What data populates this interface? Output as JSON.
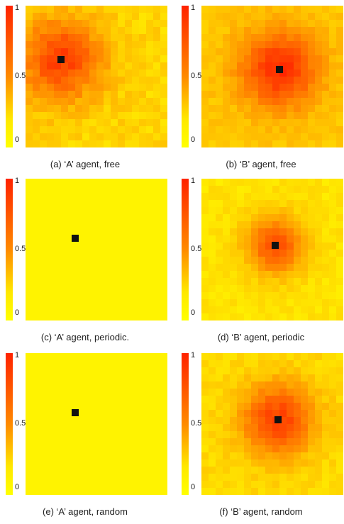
{
  "chart_data": [
    {
      "type": "heatmap",
      "caption": "(a) ‘A’ agent, free",
      "colorbar_ticks": [
        "1",
        "0.5",
        "0"
      ],
      "colorbar_range": [
        0,
        1
      ],
      "colormap": [
        "#ffff00",
        "#ff8a00",
        "#ff2200"
      ],
      "marker_color": "#111111",
      "seed": 11,
      "base": 0.18,
      "center": [
        0.25,
        0.38
      ],
      "spread": 0.34,
      "peak": 0.68,
      "noise": 0.08
    },
    {
      "type": "heatmap",
      "caption": "(b) ‘B’ agent, free",
      "colorbar_ticks": [
        "1",
        "0.5",
        "0"
      ],
      "colorbar_range": [
        0,
        1
      ],
      "colormap": [
        "#ffff00",
        "#ff8a00",
        "#ff2200"
      ],
      "marker_color": "#111111",
      "seed": 23,
      "base": 0.24,
      "center": [
        0.55,
        0.45
      ],
      "spread": 0.32,
      "peak": 0.72,
      "noise": 0.06
    },
    {
      "type": "heatmap",
      "caption": "(c) ‘A’ agent, periodic.",
      "colorbar_ticks": [
        "1",
        "0.5",
        "0"
      ],
      "colorbar_range": [
        0,
        1
      ],
      "colormap": [
        "#ffff00",
        "#ff8a00",
        "#ff2200"
      ],
      "marker_color": "#111111",
      "seed": 31,
      "base": 0.05,
      "center": [
        0.35,
        0.42
      ],
      "spread": 0.0,
      "peak": 0.0,
      "noise": 0.0
    },
    {
      "type": "heatmap",
      "caption": "(d) ‘B’ agent, periodic",
      "colorbar_ticks": [
        "1",
        "0.5",
        "0"
      ],
      "colorbar_range": [
        0,
        1
      ],
      "colormap": [
        "#ffff00",
        "#ff8a00",
        "#ff2200"
      ],
      "marker_color": "#111111",
      "seed": 47,
      "base": 0.12,
      "center": [
        0.52,
        0.47
      ],
      "spread": 0.24,
      "peak": 0.66,
      "noise": 0.05
    },
    {
      "type": "heatmap",
      "caption": "(e) ‘A’ agent, random",
      "colorbar_ticks": [
        "1",
        "0.5",
        "0"
      ],
      "colorbar_range": [
        0,
        1
      ],
      "colormap": [
        "#ffff00",
        "#ff8a00",
        "#ff2200"
      ],
      "marker_color": "#111111",
      "seed": 59,
      "base": 0.05,
      "center": [
        0.35,
        0.42
      ],
      "spread": 0.0,
      "peak": 0.0,
      "noise": 0.0
    },
    {
      "type": "heatmap",
      "caption": "(f) ‘B’ agent, random",
      "colorbar_ticks": [
        "1",
        "0.5",
        "0"
      ],
      "colorbar_range": [
        0,
        1
      ],
      "colormap": [
        "#ffff00",
        "#ff8a00",
        "#ff2200"
      ],
      "marker_color": "#111111",
      "seed": 67,
      "base": 0.16,
      "center": [
        0.54,
        0.47
      ],
      "spread": 0.3,
      "peak": 0.7,
      "noise": 0.06
    }
  ]
}
